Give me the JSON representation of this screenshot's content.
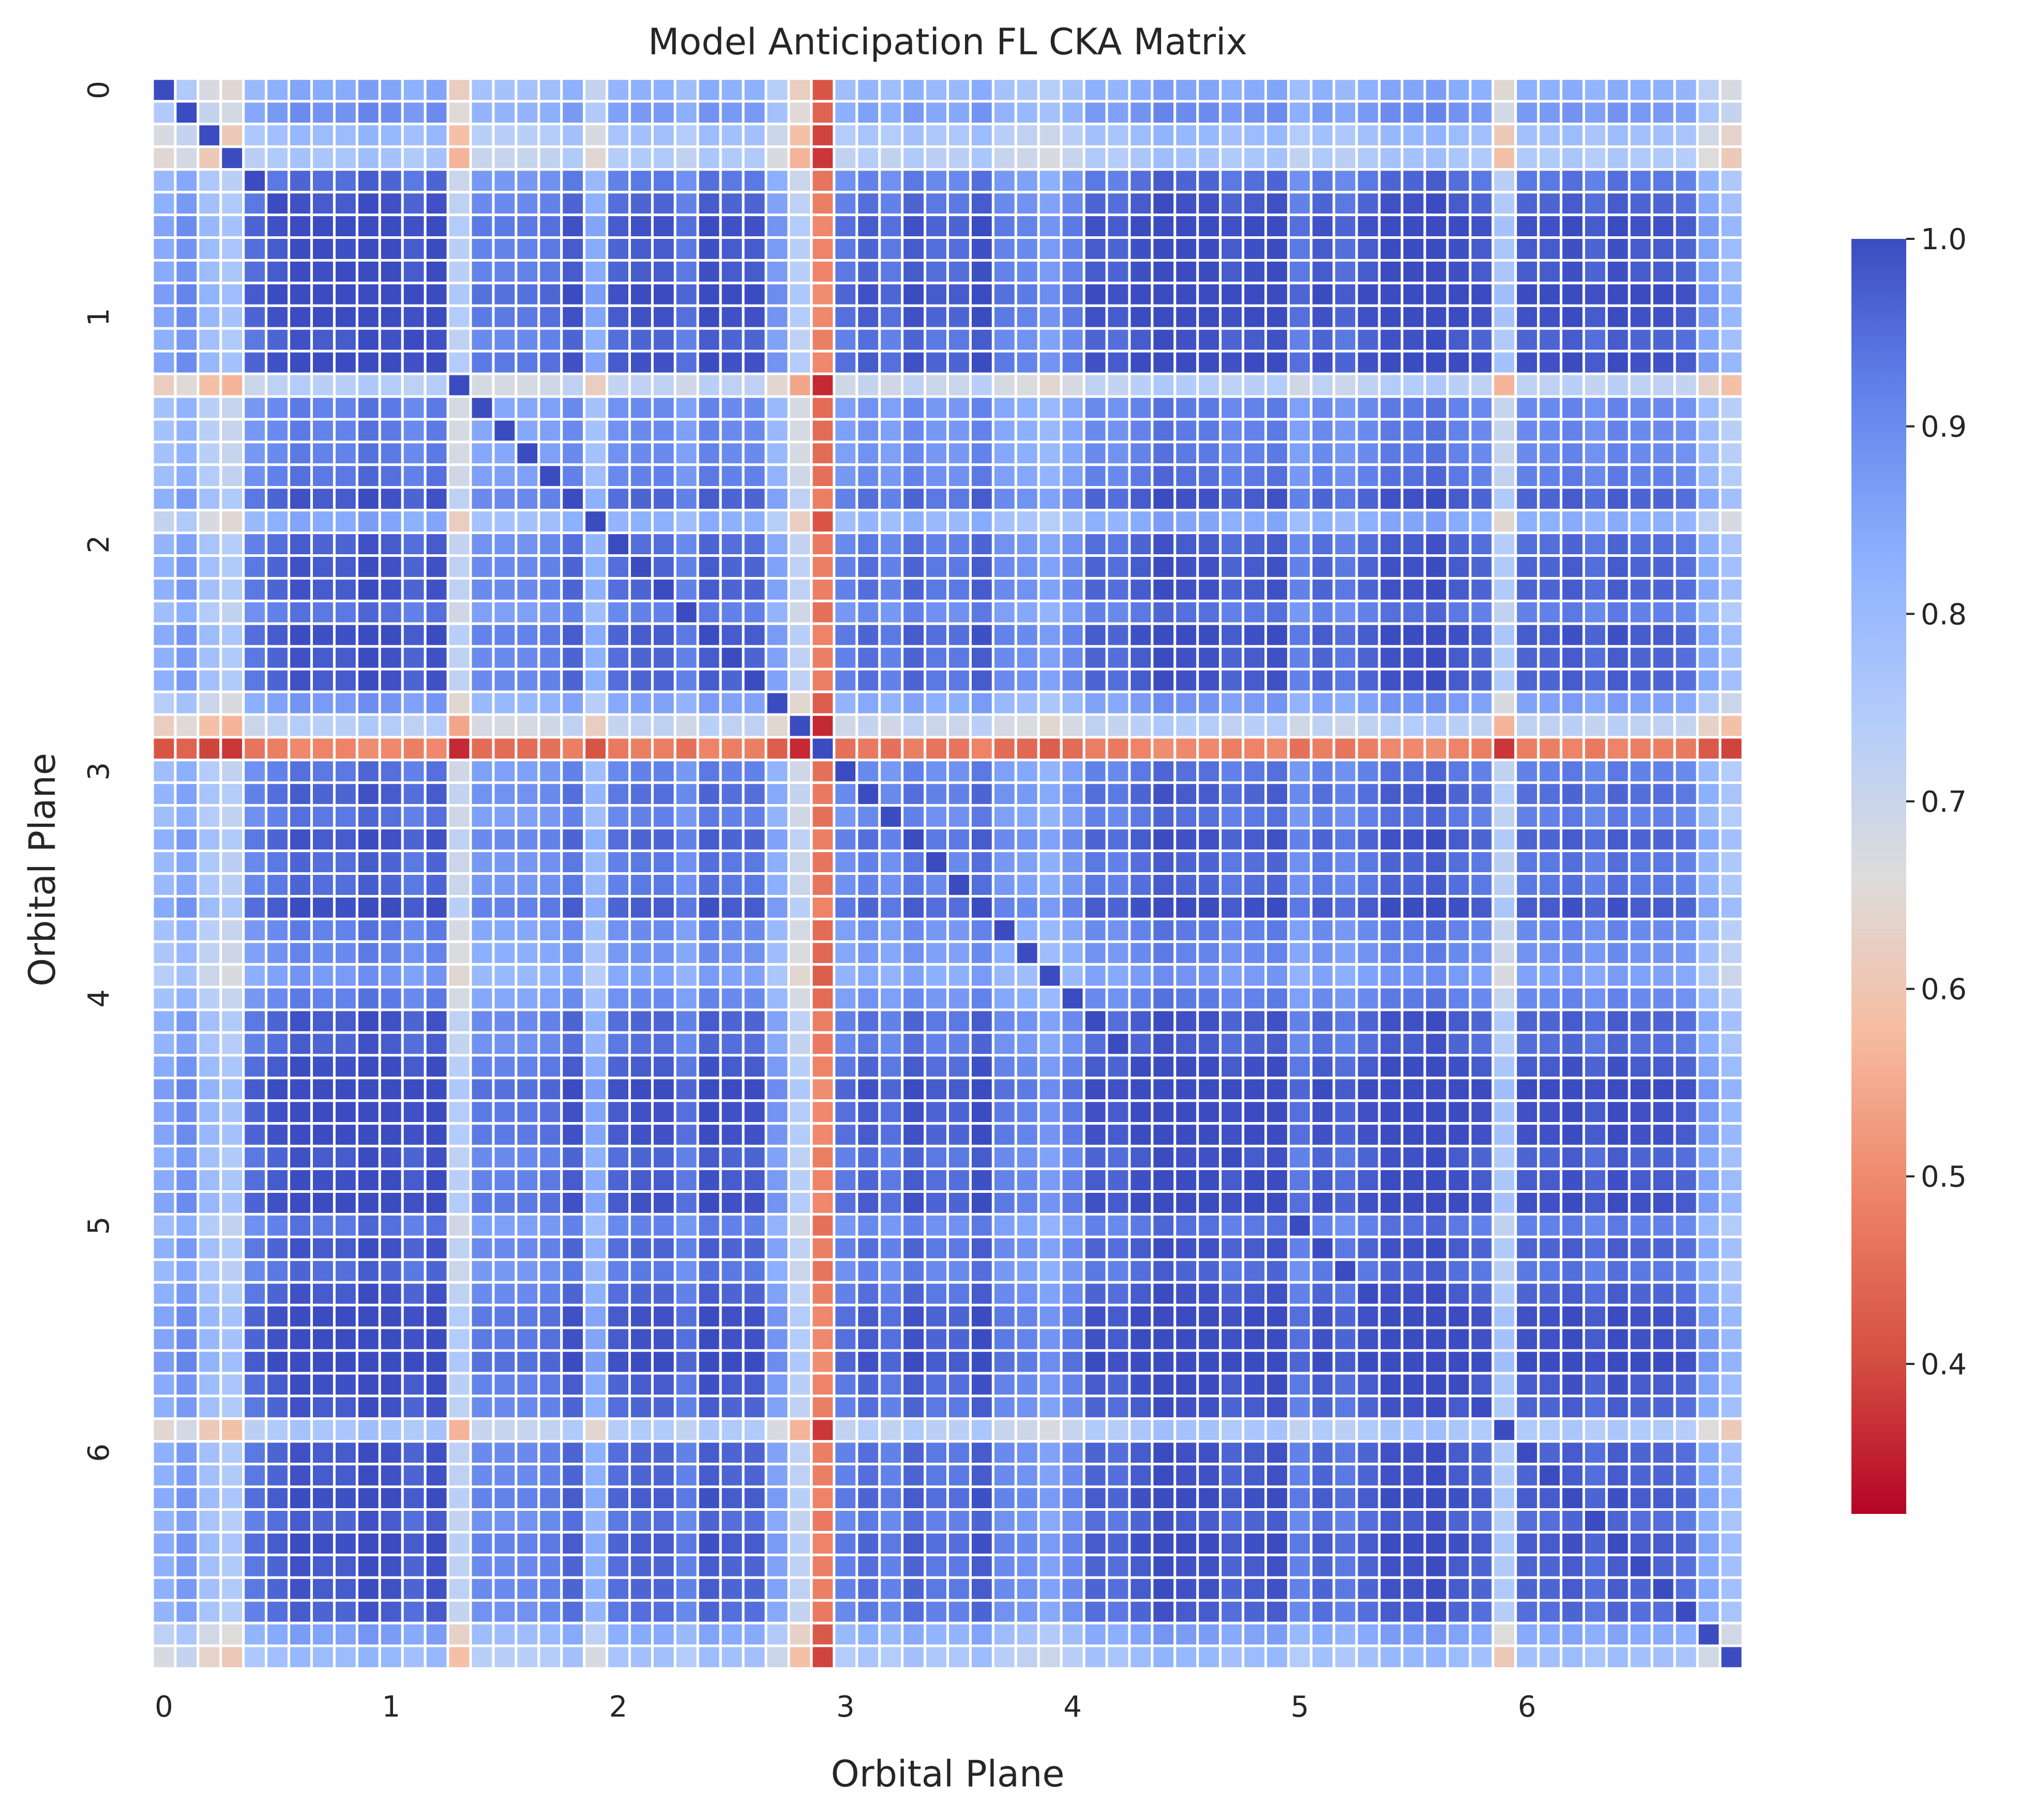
{
  "chart_data": {
    "type": "heatmap",
    "title": "Model Anticipation FL CKA Matrix",
    "xlabel": "Orbital Plane",
    "ylabel": "Orbital Plane",
    "matrix_size": 70,
    "groups": 7,
    "x_ticks": [
      "0",
      "1",
      "2",
      "3",
      "4",
      "5",
      "6"
    ],
    "y_ticks": [
      "0",
      "1",
      "2",
      "3",
      "4",
      "5",
      "6"
    ],
    "colormap": "coolwarm_r",
    "colorbar": {
      "min": 0.32,
      "max": 1.0,
      "ticks": [
        "0.4",
        "0.5",
        "0.6",
        "0.7",
        "0.8",
        "0.9",
        "1.0"
      ]
    },
    "cell_gridlines": true,
    "diagonal_value": 1.0,
    "node_similarity": [
      0.55,
      0.58,
      0.52,
      0.5,
      0.62,
      0.64,
      0.66,
      0.65,
      0.65,
      0.67,
      0.66,
      0.64,
      0.66,
      0.48,
      0.6,
      0.6,
      0.6,
      0.61,
      0.64,
      0.55,
      0.63,
      0.64,
      0.64,
      0.61,
      0.65,
      0.64,
      0.64,
      0.57,
      0.48,
      0.32,
      0.61,
      0.63,
      0.61,
      0.64,
      0.62,
      0.62,
      0.65,
      0.6,
      0.59,
      0.57,
      0.6,
      0.64,
      0.63,
      0.65,
      0.67,
      0.66,
      0.66,
      0.64,
      0.65,
      0.66,
      0.61,
      0.64,
      0.62,
      0.64,
      0.66,
      0.66,
      0.67,
      0.65,
      0.64,
      0.5,
      0.64,
      0.64,
      0.65,
      0.63,
      0.65,
      0.64,
      0.64,
      0.63,
      0.56,
      0.52
    ],
    "node_group": [
      0,
      0,
      0,
      0,
      0,
      0,
      0,
      0,
      0,
      0,
      1,
      1,
      1,
      1,
      1,
      1,
      1,
      1,
      1,
      1,
      2,
      2,
      2,
      2,
      2,
      2,
      2,
      2,
      2,
      2,
      3,
      3,
      3,
      3,
      3,
      3,
      3,
      3,
      3,
      3,
      4,
      4,
      4,
      4,
      4,
      4,
      4,
      4,
      4,
      4,
      5,
      5,
      5,
      5,
      5,
      5,
      5,
      5,
      5,
      5,
      6,
      6,
      6,
      6,
      6,
      6,
      6,
      6,
      6,
      6
    ],
    "values_note": "Cell value derived as CKA(i,j) = 1 if i == j else node_similarity[i] * node_similarity[j] * 2.35 clipped to [0.32, 1.0]"
  }
}
